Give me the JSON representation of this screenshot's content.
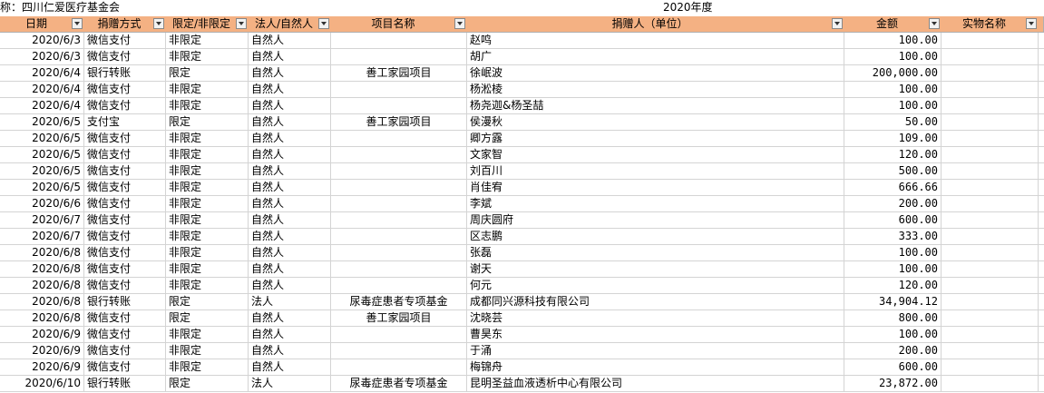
{
  "header": {
    "org": "称：四川仁爱医疗基金会",
    "year": "2020年度"
  },
  "table": {
    "columns": [
      "日期",
      "捐赠方式",
      "限定/非限定",
      "法人/自然人",
      "项目名称",
      "捐赠人（单位）",
      "金额",
      "实物名称"
    ],
    "rows": [
      [
        "2020/6/3",
        "微信支付",
        "非限定",
        "自然人",
        null,
        "赵鸣",
        "100.00"
      ],
      [
        "2020/6/3",
        "微信支付",
        "非限定",
        "自然人",
        null,
        "胡广",
        "100.00"
      ],
      [
        "2020/6/4",
        "银行转账",
        "限定",
        "自然人",
        "善工家园项目",
        "徐岷波",
        "200,000.00"
      ],
      [
        "2020/6/4",
        "微信支付",
        "非限定",
        "自然人",
        null,
        "杨淞棱",
        "100.00"
      ],
      [
        "2020/6/4",
        "微信支付",
        "非限定",
        "自然人",
        null,
        "杨尧迦&杨圣喆",
        "100.00"
      ],
      [
        "2020/6/5",
        "支付宝",
        "限定",
        "自然人",
        "善工家园项目",
        "侯漫秋",
        "50.00"
      ],
      [
        "2020/6/5",
        "微信支付",
        "非限定",
        "自然人",
        null,
        "卿方露",
        "109.00"
      ],
      [
        "2020/6/5",
        "微信支付",
        "非限定",
        "自然人",
        null,
        "文家智",
        "120.00"
      ],
      [
        "2020/6/5",
        "微信支付",
        "非限定",
        "自然人",
        null,
        "刘百川",
        "500.00"
      ],
      [
        "2020/6/5",
        "微信支付",
        "非限定",
        "自然人",
        null,
        "肖佳宥",
        "666.66"
      ],
      [
        "2020/6/6",
        "微信支付",
        "非限定",
        "自然人",
        null,
        "李斌",
        "200.00"
      ],
      [
        "2020/6/7",
        "微信支付",
        "非限定",
        "自然人",
        null,
        "周庆圆府",
        "600.00"
      ],
      [
        "2020/6/7",
        "微信支付",
        "非限定",
        "自然人",
        null,
        "区志鹏",
        "333.00"
      ],
      [
        "2020/6/8",
        "微信支付",
        "非限定",
        "自然人",
        null,
        "张磊",
        "100.00"
      ],
      [
        "2020/6/8",
        "微信支付",
        "非限定",
        "自然人",
        null,
        "谢天",
        "100.00"
      ],
      [
        "2020/6/8",
        "微信支付",
        "非限定",
        "自然人",
        null,
        "何元",
        "120.00"
      ],
      [
        "2020/6/8",
        "银行转账",
        "限定",
        "法人",
        "尿毒症患者专项基金",
        "成都同兴源科技有限公司",
        "34,904.12"
      ],
      [
        "2020/6/8",
        "微信支付",
        "限定",
        "自然人",
        "善工家园项目",
        "沈晓芸",
        "800.00"
      ],
      [
        "2020/6/9",
        "微信支付",
        "非限定",
        "自然人",
        null,
        "曹昊东",
        "100.00"
      ],
      [
        "2020/6/9",
        "微信支付",
        "非限定",
        "自然人",
        null,
        "于涌",
        "200.00"
      ],
      [
        "2020/6/9",
        "微信支付",
        "非限定",
        "自然人",
        null,
        "梅锦舟",
        "600.00"
      ],
      [
        "2020/6/10",
        "银行转账",
        "限定",
        "法人",
        "尿毒症患者专项基金",
        "昆明圣益血液透析中心有限公司",
        "23,872.00"
      ]
    ]
  }
}
